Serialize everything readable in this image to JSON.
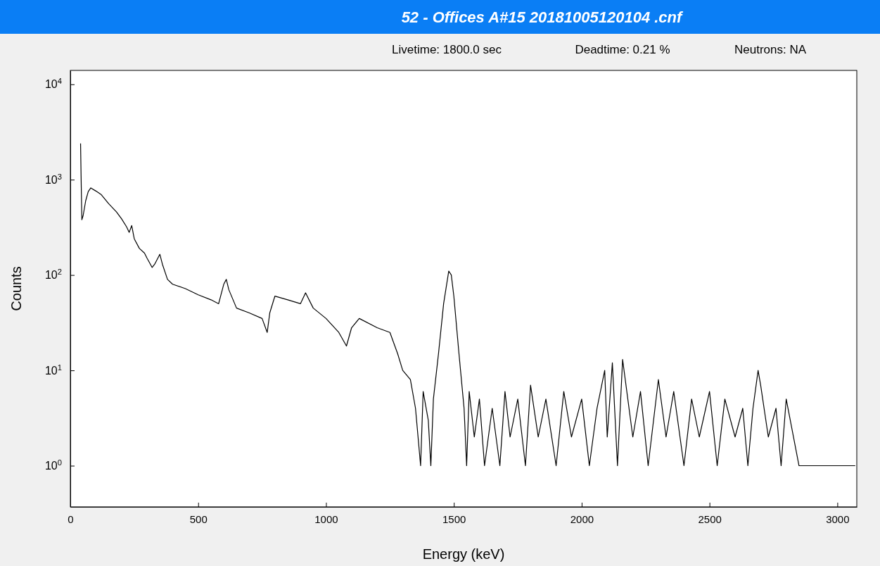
{
  "chart_data": {
    "type": "line",
    "title": "52 - Offices A#15 20181005120104 .cnf",
    "annotations": [
      "Livetime: 1800.0 sec",
      "Deadtime: 0.21 %",
      "Neutrons: NA"
    ],
    "xlabel": "Energy (keV)",
    "ylabel": "Counts",
    "log": "y",
    "grid": false,
    "marker": "none",
    "line_style": "solid",
    "xlim": [
      0,
      3076
    ],
    "ylim": [
      0.37,
      14000
    ],
    "xticks": [
      0,
      500,
      1000,
      1500,
      2000,
      2500,
      3000
    ],
    "yticks": [
      {
        "value": 1,
        "label": "10$^{0}$"
      },
      {
        "value": 10,
        "label": "10$^{1}$"
      },
      {
        "value": 100,
        "label": "10$^{2}$"
      },
      {
        "value": 1000,
        "label": "10$^{3}$"
      },
      {
        "value": 10000,
        "label": "10$^{4}$"
      }
    ],
    "series": [
      {
        "color": "#000000",
        "x": [
          40,
          42,
          45,
          50,
          60,
          70,
          80,
          100,
          120,
          150,
          180,
          200,
          220,
          230,
          240,
          250,
          270,
          290,
          300,
          320,
          330,
          350,
          360,
          380,
          400,
          450,
          500,
          550,
          580,
          600,
          610,
          620,
          650,
          700,
          750,
          770,
          780,
          800,
          850,
          900,
          920,
          950,
          1000,
          1050,
          1080,
          1100,
          1130,
          1200,
          1250,
          1280,
          1300,
          1330,
          1350,
          1370,
          1380,
          1400,
          1410,
          1420,
          1440,
          1460,
          1480,
          1490,
          1500,
          1520,
          1540,
          1550,
          1560,
          1580,
          1600,
          1620,
          1650,
          1680,
          1700,
          1720,
          1750,
          1780,
          1800,
          1830,
          1860,
          1900,
          1930,
          1960,
          2000,
          2030,
          2060,
          2090,
          2100,
          2120,
          2140,
          2160,
          2200,
          2230,
          2260,
          2300,
          2330,
          2360,
          2400,
          2430,
          2460,
          2500,
          2530,
          2560,
          2600,
          2630,
          2650,
          2670,
          2690,
          2700,
          2730,
          2760,
          2780,
          2800,
          2850,
          2900,
          2950,
          3000,
          3050,
          3070
        ],
        "values": [
          2400,
          1100,
          380,
          420,
          600,
          750,
          820,
          760,
          700,
          560,
          460,
          390,
          320,
          280,
          330,
          240,
          190,
          170,
          150,
          120,
          130,
          165,
          130,
          90,
          80,
          72,
          62,
          55,
          50,
          80,
          90,
          70,
          45,
          40,
          35,
          25,
          40,
          60,
          55,
          50,
          65,
          45,
          35,
          25,
          18,
          28,
          35,
          28,
          25,
          15,
          10,
          8,
          4,
          1,
          6,
          3,
          1,
          5,
          15,
          50,
          110,
          100,
          60,
          15,
          4,
          1,
          6,
          2,
          5,
          1,
          4,
          1,
          6,
          2,
          5,
          1,
          7,
          2,
          5,
          1,
          6,
          2,
          5,
          1,
          4,
          10,
          2,
          12,
          1,
          13,
          2,
          6,
          1,
          8,
          2,
          6,
          1,
          5,
          2,
          6,
          1,
          5,
          2,
          4,
          1,
          4,
          10,
          7,
          2,
          4,
          1,
          5,
          1,
          1,
          1,
          1,
          1,
          1
        ]
      }
    ]
  }
}
